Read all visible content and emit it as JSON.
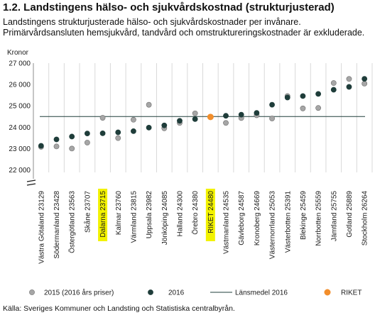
{
  "title": "1.2. Landstingens hälso- och sjukvårdskostnad (strukturjusterad)",
  "subtitle": "Landstingens strukturjusterade hälso- och sjukvårdskostnader per invånare. Primärvårdsansluten hemsjukvård, tandvård och omstruktureringskostnader är exkluderade.",
  "source": "Källa: Sveriges Kommuner och Landsting och Statistiska centralbyrån.",
  "colors": {
    "series_2015": "#a6a6a6",
    "series_2016": "#1f3d3a",
    "mean_line": "#1f3d3a",
    "riket": "#f28e2b",
    "highlight": "#f2f200",
    "grid": "#d9d9d9"
  },
  "chart_data": {
    "type": "scatter",
    "ylabel": "Kronor",
    "ylim": [
      22000,
      27000
    ],
    "yticks": [
      "22 000",
      "23 000",
      "24 000",
      "25 000",
      "26 000",
      "27 000"
    ],
    "ytick_values": [
      22000,
      23000,
      24000,
      25000,
      26000,
      27000
    ],
    "axis_break": true,
    "grid": "vertical",
    "legend_position": "bottom",
    "categories": [
      "Västra Götaland 23129",
      "Södermanland 23428",
      "Östergötland 23563",
      "Skåne 23707",
      "Dalarna 23715",
      "Kalmar 23760",
      "Värmland 23815",
      "Uppsala 23982",
      "Jönköping 24085",
      "Halland 24300",
      "Örebro 24380",
      "RIKET 24480",
      "Västmanland 24535",
      "Gävleborg 24587",
      "Kronoberg 24669",
      "Västernorrland 25053",
      "Västerbotten 25391",
      "Blekinge 25459",
      "Norrbotten 25559",
      "Jämtland 25755",
      "Gotland 25889",
      "Stockholm 26264"
    ],
    "highlighted": [
      "Dalarna 23715",
      "RIKET 24480"
    ],
    "series": [
      {
        "name": "2015 (2016 års priser)",
        "values": [
          23080,
          23100,
          23000,
          23280,
          24440,
          23490,
          24350,
          25050,
          23950,
          24200,
          24650,
          null,
          24200,
          24430,
          24560,
          24410,
          25460,
          24880,
          24900,
          26070,
          26260,
          26040
        ]
      },
      {
        "name": "2016",
        "values": [
          23129,
          23428,
          23563,
          23707,
          23715,
          23760,
          23815,
          23982,
          24085,
          24300,
          24380,
          null,
          24535,
          24587,
          24669,
          25053,
          25391,
          25459,
          25559,
          25755,
          25889,
          26264
        ]
      },
      {
        "name": "RIKET",
        "values": [
          null,
          null,
          null,
          null,
          null,
          null,
          null,
          null,
          null,
          null,
          null,
          24480,
          null,
          null,
          null,
          null,
          null,
          null,
          null,
          null,
          null,
          null
        ]
      }
    ],
    "mean_line": {
      "name": "Länsmedel 2016",
      "value": 24500
    }
  }
}
